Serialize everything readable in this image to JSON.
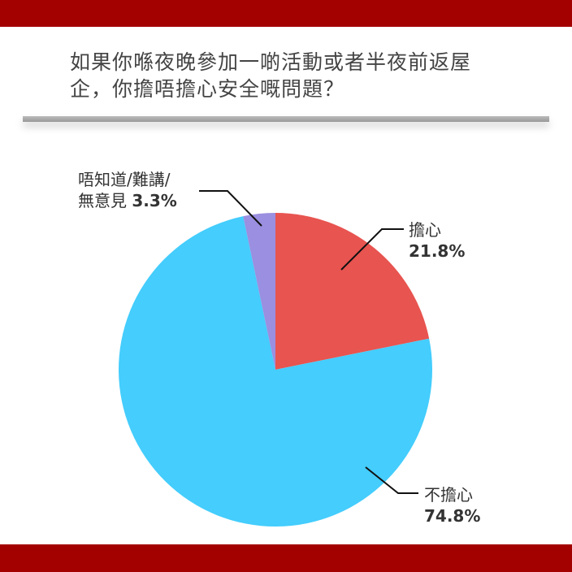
{
  "title": "如果你喺夜晚參加一啲活動或者半夜前返屋企，你擔唔擔心安全嘅問題？",
  "colors": {
    "band": "#a30000"
  },
  "chart_data": {
    "type": "pie",
    "title": "如果你喺夜晚參加一啲活動或者半夜前返屋企，你擔唔擔心安全嘅問題？",
    "slices": [
      {
        "label": "擔心",
        "value": 21.8,
        "value_label": "21.8%",
        "color": "#e85450"
      },
      {
        "label": "不擔心",
        "value": 74.8,
        "value_label": "74.8%",
        "color": "#44cdfd"
      },
      {
        "label_line1": "唔知道/難講/",
        "label": "無意見",
        "value": 3.3,
        "value_label": "3.3%",
        "color": "#9a8fe0"
      }
    ]
  }
}
